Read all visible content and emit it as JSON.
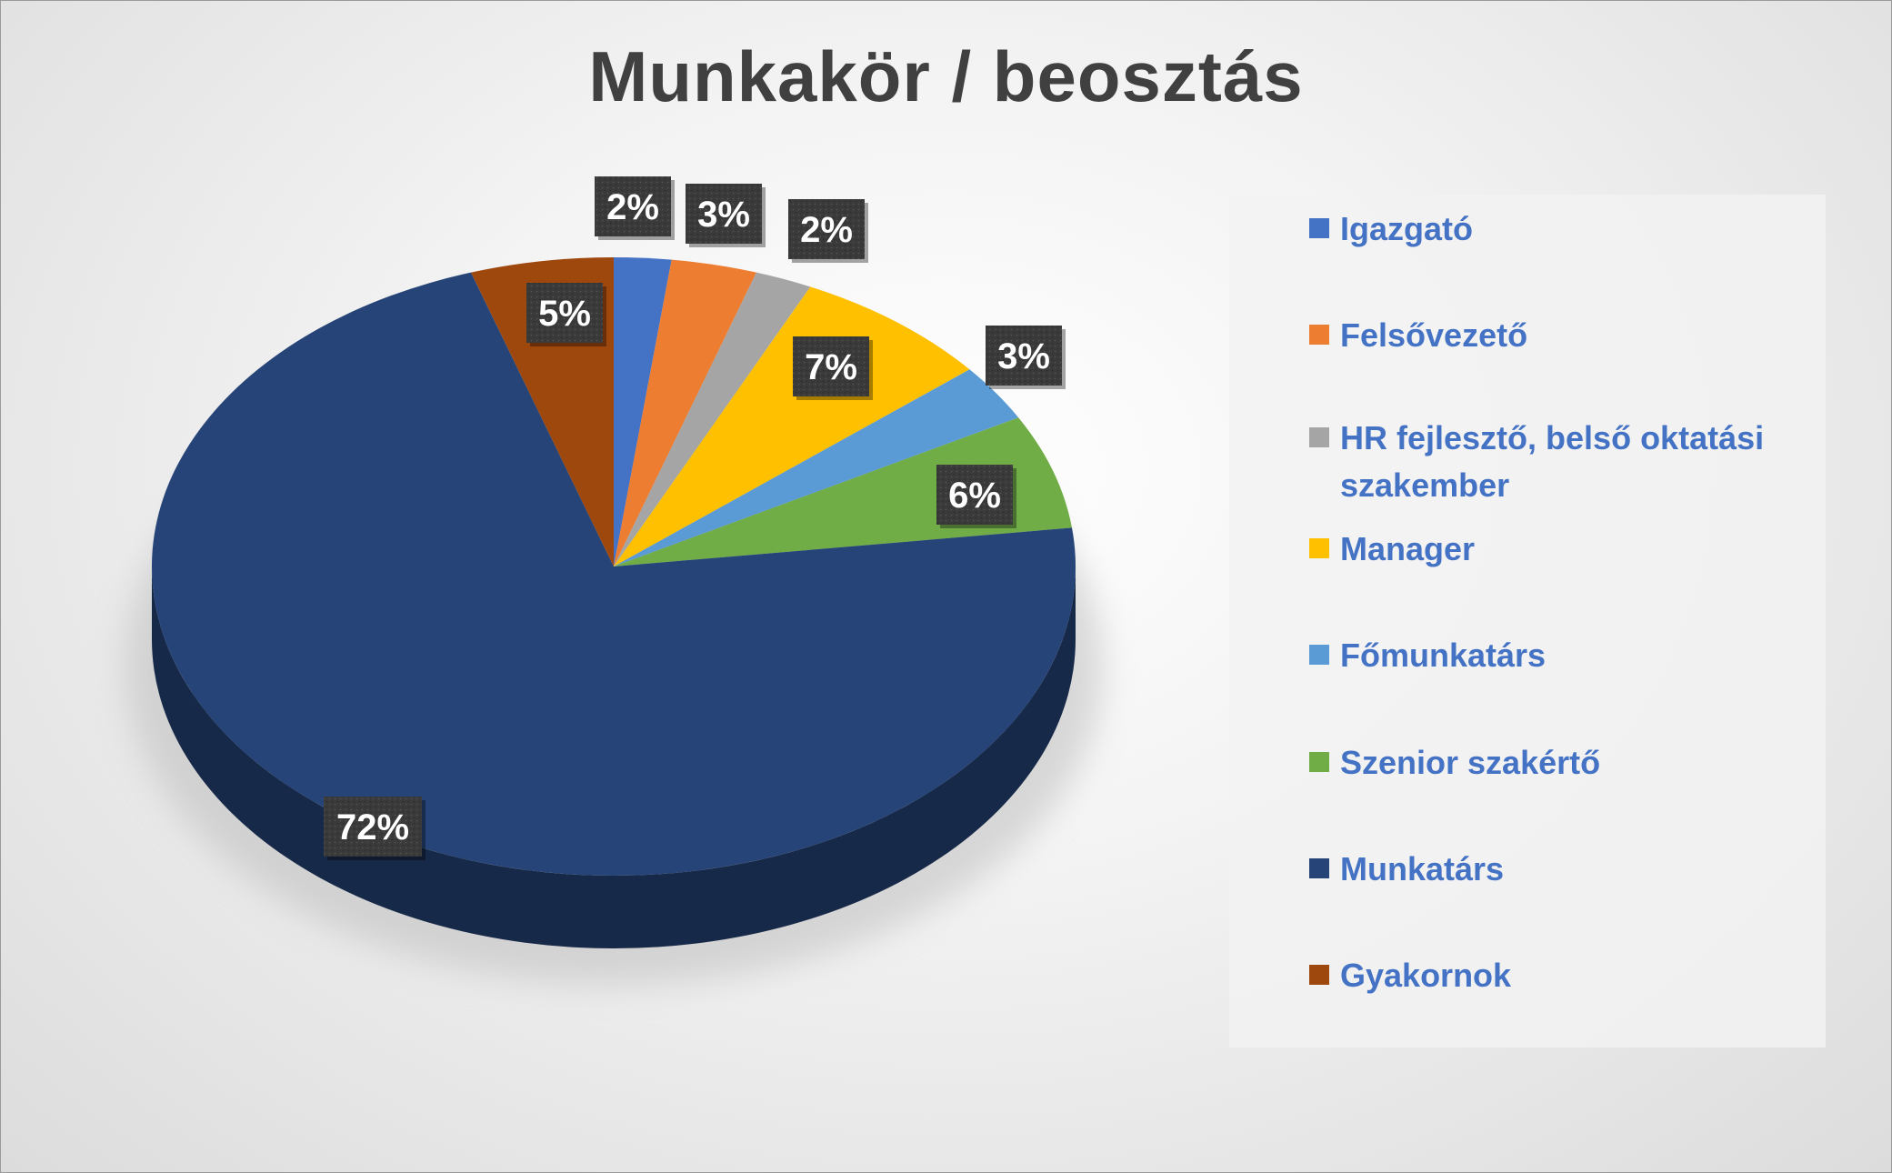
{
  "chart_data": {
    "type": "pie",
    "title": "Munkakör / beosztás",
    "legend_position": "right",
    "style": "3d-pie",
    "categories": [
      "Igazgató",
      "Felsővezető",
      "HR fejlesztő, belső oktatási szakember",
      "Manager",
      "Főmunkatárs",
      "Szenior szakértő",
      "Munkatárs",
      "Gyakornok"
    ],
    "values": [
      2,
      3,
      2,
      7,
      3,
      6,
      72,
      5
    ],
    "labels": [
      "2%",
      "3%",
      "2%",
      "7%",
      "3%",
      "6%",
      "72%",
      "5%"
    ],
    "colors": [
      "#4472c4",
      "#ed7d31",
      "#a5a5a5",
      "#ffc000",
      "#5b9bd5",
      "#70ad47",
      "#264478",
      "#9e480e"
    ]
  }
}
